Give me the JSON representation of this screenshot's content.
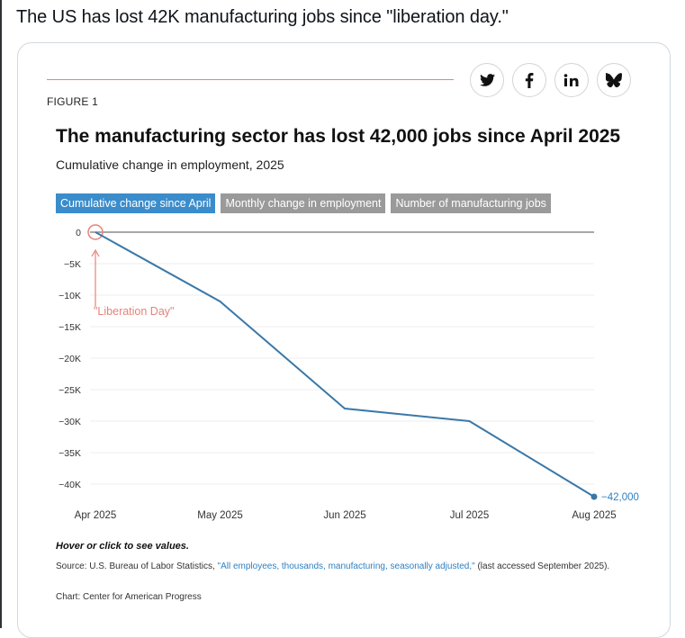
{
  "tweet": {
    "text": "The US has lost 42K manufacturing jobs since \"liberation day.\""
  },
  "figure": {
    "label": "FIGURE 1",
    "title": "The manufacturing sector has lost 42,000 jobs since April 2025",
    "subtitle": "Cumulative change in employment, 2025",
    "tabs": [
      "Cumulative change since April",
      "Monthly change in employment",
      "Number of manufacturing jobs"
    ],
    "share_icons": [
      "twitter-icon",
      "facebook-icon",
      "linkedin-icon",
      "bluesky-icon"
    ],
    "hover_note": "Hover or click to see values.",
    "source_prefix": "Source: U.S. Bureau of Labor Statistics, ",
    "source_link": "\"All employees, thousands, manufacturing, seasonally adjusted,\"",
    "source_suffix": " (last accessed September 2025).",
    "credit": "Chart: Center for American Progress"
  },
  "chart_data": {
    "type": "line",
    "x": [
      "Apr 2025",
      "May 2025",
      "Jun 2025",
      "Jul 2025",
      "Aug 2025"
    ],
    "series": [
      {
        "values": [
          0,
          -11000,
          -28000,
          -30000,
          -42000
        ],
        "color": "#3a78a8"
      }
    ],
    "ylim": [
      -40000,
      0
    ],
    "yticks": [
      0,
      -5000,
      -10000,
      -15000,
      -20000,
      -25000,
      -30000,
      -35000,
      -40000
    ],
    "ytick_labels": [
      "0",
      "−5K",
      "−10K",
      "−15K",
      "−20K",
      "−25K",
      "−30K",
      "−35K",
      "−40K"
    ],
    "end_label": "−42,000",
    "annotation": {
      "text": "\"Liberation Day\"",
      "x": "Apr 2025",
      "color": "#e5837a"
    },
    "grid": true,
    "active_tab": "Cumulative change since April"
  }
}
